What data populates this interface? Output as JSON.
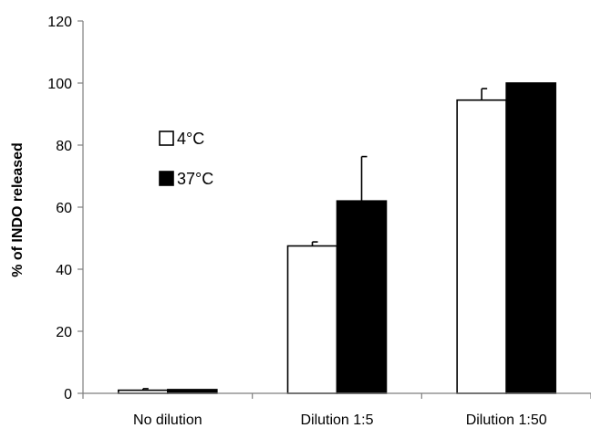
{
  "chart_data": {
    "type": "bar",
    "title": "",
    "xlabel": "",
    "ylabel": "% of INDO released",
    "ylim": [
      0,
      120
    ],
    "yticks": [
      0,
      20,
      40,
      60,
      80,
      100,
      120
    ],
    "categories": [
      "No dilution",
      "Dilution 1:5",
      "Dilution 1:50"
    ],
    "series": [
      {
        "name": "4°C",
        "values": [
          1,
          47.5,
          94.5
        ],
        "errors": [
          0.5,
          1.3,
          3.7
        ],
        "color": "#ffffff",
        "stroke": "#000000"
      },
      {
        "name": "37°C",
        "values": [
          1.2,
          62,
          100
        ],
        "errors": [
          0,
          14.3,
          0
        ],
        "color": "#000000",
        "stroke": "#000000"
      }
    ],
    "legend_position": "center-left",
    "grid": false
  }
}
